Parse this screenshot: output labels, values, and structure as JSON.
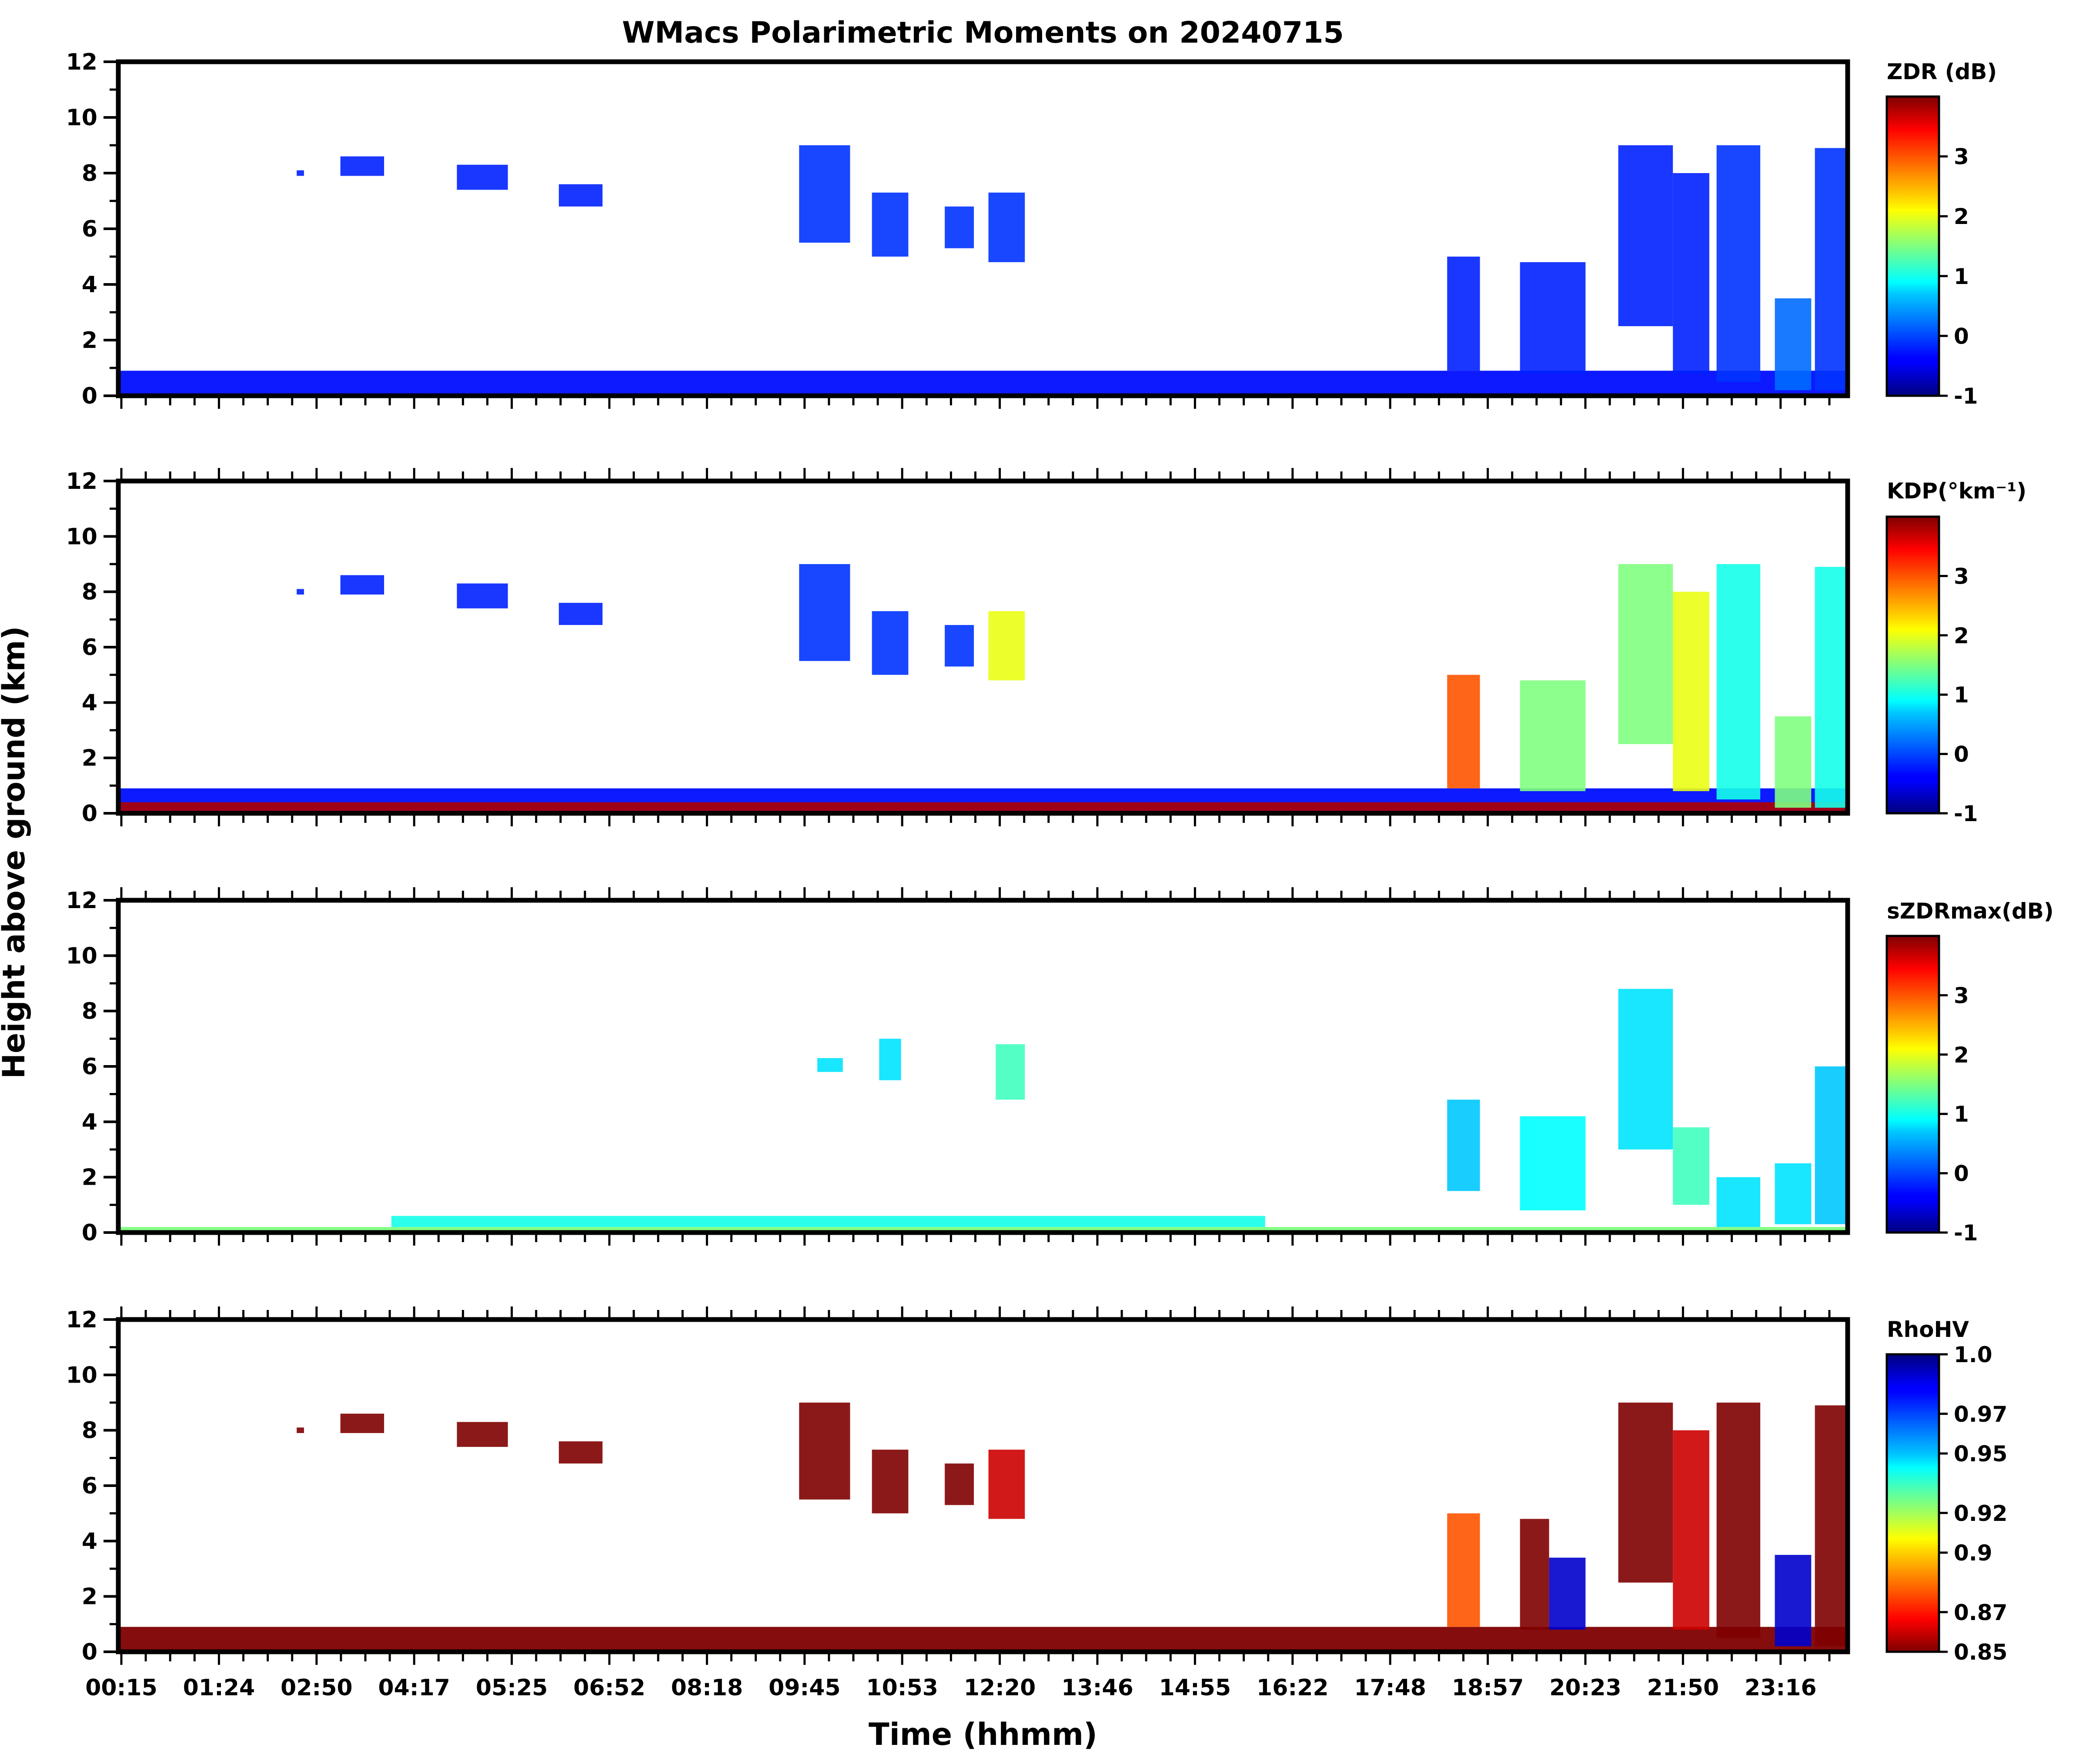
{
  "chart_data": {
    "type": "heatmap",
    "title": "WMacs Polarimetric Moments on 20240715",
    "xlabel": "Time (hhmm)",
    "ylabel": "Height above ground (km)",
    "x_tick_labels": [
      "00:15",
      "01:24",
      "02:50",
      "04:17",
      "05:25",
      "06:52",
      "08:18",
      "09:45",
      "10:53",
      "12:20",
      "13:46",
      "14:55",
      "16:22",
      "17:48",
      "18:57",
      "20:23",
      "21:50",
      "23:16"
    ],
    "xlim": [
      0.25,
      24.0
    ],
    "ylim": [
      0,
      12
    ],
    "y_ticks": [
      "0",
      "2",
      "4",
      "6",
      "8",
      "10",
      "12"
    ],
    "panels": [
      {
        "field": "ZDR",
        "colorbar_label": "ZDR (dB)",
        "color_range": [
          -1,
          4
        ],
        "colorbar_ticks": [
          "-1",
          "0",
          "1",
          "2",
          "3"
        ],
        "colorbar_tick_values": [
          -1,
          0,
          1,
          2,
          3
        ],
        "colormap": "jet",
        "dominant_echo_color": "#1f5fe8",
        "echo_regions": [
          {
            "t_start": 0.25,
            "t_end": 24.0,
            "h_bottom": 0.0,
            "h_top": 0.9,
            "value": -0.3
          },
          {
            "t_start": 2.7,
            "t_end": 2.8,
            "h_bottom": 7.9,
            "h_top": 8.1,
            "value": -0.2
          },
          {
            "t_start": 3.3,
            "t_end": 3.9,
            "h_bottom": 7.9,
            "h_top": 8.6,
            "value": -0.2
          },
          {
            "t_start": 4.9,
            "t_end": 5.6,
            "h_bottom": 7.4,
            "h_top": 8.3,
            "value": -0.2
          },
          {
            "t_start": 6.3,
            "t_end": 6.9,
            "h_bottom": 6.8,
            "h_top": 7.6,
            "value": -0.2
          },
          {
            "t_start": 9.6,
            "t_end": 10.3,
            "h_bottom": 5.5,
            "h_top": 9.0,
            "value": -0.1
          },
          {
            "t_start": 10.6,
            "t_end": 11.1,
            "h_bottom": 5.0,
            "h_top": 7.3,
            "value": -0.1
          },
          {
            "t_start": 11.6,
            "t_end": 12.0,
            "h_bottom": 5.3,
            "h_top": 6.8,
            "value": -0.1
          },
          {
            "t_start": 12.2,
            "t_end": 12.7,
            "h_bottom": 4.8,
            "h_top": 7.3,
            "value": -0.1
          },
          {
            "t_start": 18.5,
            "t_end": 18.95,
            "h_bottom": 0.9,
            "h_top": 5.0,
            "value": -0.2
          },
          {
            "t_start": 19.5,
            "t_end": 20.4,
            "h_bottom": 0.8,
            "h_top": 4.8,
            "value": -0.2
          },
          {
            "t_start": 20.85,
            "t_end": 21.6,
            "h_bottom": 2.5,
            "h_top": 9.0,
            "value": -0.2
          },
          {
            "t_start": 21.6,
            "t_end": 22.1,
            "h_bottom": 0.8,
            "h_top": 8.0,
            "value": -0.2
          },
          {
            "t_start": 22.2,
            "t_end": 22.8,
            "h_bottom": 0.5,
            "h_top": 9.0,
            "value": -0.1
          },
          {
            "t_start": 23.0,
            "t_end": 23.5,
            "h_bottom": 0.2,
            "h_top": 3.5,
            "value": 0.2
          },
          {
            "t_start": 23.55,
            "t_end": 24.0,
            "h_bottom": 0.2,
            "h_top": 8.9,
            "value": -0.1
          }
        ]
      },
      {
        "field": "KDP",
        "colorbar_label": "KDP(°km⁻¹)",
        "color_range": [
          -1,
          4
        ],
        "colorbar_ticks": [
          "-1",
          "0",
          "1",
          "2",
          "3"
        ],
        "colorbar_tick_values": [
          -1,
          0,
          1,
          2,
          3
        ],
        "colormap": "jet",
        "dominant_echo_color": "#1f5fe8",
        "echo_regions": [
          {
            "t_start": 0.25,
            "t_end": 24.0,
            "h_bottom": 0.0,
            "h_top": 0.9,
            "value": -0.3
          },
          {
            "t_start": 0.25,
            "t_end": 24.0,
            "h_bottom": 0.0,
            "h_top": 0.4,
            "value": 3.8
          },
          {
            "t_start": 2.7,
            "t_end": 2.8,
            "h_bottom": 7.9,
            "h_top": 8.1,
            "value": -0.2
          },
          {
            "t_start": 3.3,
            "t_end": 3.9,
            "h_bottom": 7.9,
            "h_top": 8.6,
            "value": -0.2
          },
          {
            "t_start": 4.9,
            "t_end": 5.6,
            "h_bottom": 7.4,
            "h_top": 8.3,
            "value": -0.2
          },
          {
            "t_start": 6.3,
            "t_end": 6.9,
            "h_bottom": 6.8,
            "h_top": 7.6,
            "value": -0.2
          },
          {
            "t_start": 9.6,
            "t_end": 10.3,
            "h_bottom": 5.5,
            "h_top": 9.0,
            "value": -0.1
          },
          {
            "t_start": 10.6,
            "t_end": 11.1,
            "h_bottom": 5.0,
            "h_top": 7.3,
            "value": -0.1
          },
          {
            "t_start": 11.6,
            "t_end": 12.0,
            "h_bottom": 5.3,
            "h_top": 6.8,
            "value": -0.1
          },
          {
            "t_start": 12.2,
            "t_end": 12.7,
            "h_bottom": 4.8,
            "h_top": 7.3,
            "value": 2.0
          },
          {
            "t_start": 18.5,
            "t_end": 18.95,
            "h_bottom": 0.9,
            "h_top": 5.0,
            "value": 3.0
          },
          {
            "t_start": 19.5,
            "t_end": 20.4,
            "h_bottom": 0.8,
            "h_top": 4.8,
            "value": 1.5
          },
          {
            "t_start": 20.85,
            "t_end": 21.6,
            "h_bottom": 2.5,
            "h_top": 9.0,
            "value": 1.5
          },
          {
            "t_start": 21.6,
            "t_end": 22.1,
            "h_bottom": 0.8,
            "h_top": 8.0,
            "value": 2.0
          },
          {
            "t_start": 22.2,
            "t_end": 22.8,
            "h_bottom": 0.5,
            "h_top": 9.0,
            "value": 1.0
          },
          {
            "t_start": 23.0,
            "t_end": 23.5,
            "h_bottom": 0.2,
            "h_top": 3.5,
            "value": 1.5
          },
          {
            "t_start": 23.55,
            "t_end": 24.0,
            "h_bottom": 0.2,
            "h_top": 8.9,
            "value": 1.0
          }
        ]
      },
      {
        "field": "sZDRmax",
        "colorbar_label": "sZDRmax(dB)",
        "color_range": [
          -1,
          4
        ],
        "colorbar_ticks": [
          "-1",
          "0",
          "1",
          "2",
          "3"
        ],
        "colorbar_tick_values": [
          -1,
          0,
          1,
          2,
          3
        ],
        "colormap": "jet",
        "dominant_echo_color": "#2bc4f0",
        "echo_regions": [
          {
            "t_start": 0.25,
            "t_end": 24.0,
            "h_bottom": 0.0,
            "h_top": 0.2,
            "value": 1.5
          },
          {
            "t_start": 4.0,
            "t_end": 16.0,
            "h_bottom": 0.2,
            "h_top": 0.6,
            "value": 1.0
          },
          {
            "t_start": 9.85,
            "t_end": 10.2,
            "h_bottom": 5.8,
            "h_top": 6.3,
            "value": 0.8
          },
          {
            "t_start": 10.7,
            "t_end": 11.0,
            "h_bottom": 5.5,
            "h_top": 7.0,
            "value": 0.8
          },
          {
            "t_start": 12.3,
            "t_end": 12.7,
            "h_bottom": 4.8,
            "h_top": 6.8,
            "value": 1.2
          },
          {
            "t_start": 18.5,
            "t_end": 18.95,
            "h_bottom": 1.5,
            "h_top": 4.8,
            "value": 0.7
          },
          {
            "t_start": 19.5,
            "t_end": 20.4,
            "h_bottom": 0.8,
            "h_top": 4.2,
            "value": 0.9
          },
          {
            "t_start": 20.85,
            "t_end": 21.6,
            "h_bottom": 3.0,
            "h_top": 8.8,
            "value": 0.8
          },
          {
            "t_start": 21.6,
            "t_end": 22.1,
            "h_bottom": 1.0,
            "h_top": 3.8,
            "value": 1.2
          },
          {
            "t_start": 22.2,
            "t_end": 22.8,
            "h_bottom": 0.2,
            "h_top": 2.0,
            "value": 0.8
          },
          {
            "t_start": 23.0,
            "t_end": 23.5,
            "h_bottom": 0.3,
            "h_top": 2.5,
            "value": 0.8
          },
          {
            "t_start": 23.55,
            "t_end": 24.0,
            "h_bottom": 0.3,
            "h_top": 6.0,
            "value": 0.7
          }
        ]
      },
      {
        "field": "RhoHV",
        "colorbar_label": "RhoHV",
        "color_range": [
          0.85,
          1.0
        ],
        "colorbar_ticks": [
          "1.0",
          "0.97",
          "0.95",
          "0.92",
          "0.9",
          "0.87",
          "0.85"
        ],
        "colorbar_tick_values": [
          1.0,
          0.97,
          0.95,
          0.92,
          0.9,
          0.87,
          0.85
        ],
        "colormap": "jet_r",
        "dominant_echo_color": "#8b0000",
        "echo_regions": [
          {
            "t_start": 0.25,
            "t_end": 24.0,
            "h_bottom": 0.0,
            "h_top": 0.9,
            "value": 0.85
          },
          {
            "t_start": 2.7,
            "t_end": 2.8,
            "h_bottom": 7.9,
            "h_top": 8.1,
            "value": 0.85
          },
          {
            "t_start": 3.3,
            "t_end": 3.9,
            "h_bottom": 7.9,
            "h_top": 8.6,
            "value": 0.85
          },
          {
            "t_start": 4.9,
            "t_end": 5.6,
            "h_bottom": 7.4,
            "h_top": 8.3,
            "value": 0.85
          },
          {
            "t_start": 6.3,
            "t_end": 6.9,
            "h_bottom": 6.8,
            "h_top": 7.6,
            "value": 0.85
          },
          {
            "t_start": 9.6,
            "t_end": 10.3,
            "h_bottom": 5.5,
            "h_top": 9.0,
            "value": 0.85
          },
          {
            "t_start": 10.6,
            "t_end": 11.1,
            "h_bottom": 5.0,
            "h_top": 7.3,
            "value": 0.85
          },
          {
            "t_start": 11.6,
            "t_end": 12.0,
            "h_bottom": 5.3,
            "h_top": 6.8,
            "value": 0.85
          },
          {
            "t_start": 12.2,
            "t_end": 12.7,
            "h_bottom": 4.8,
            "h_top": 7.3,
            "value": 0.86
          },
          {
            "t_start": 18.5,
            "t_end": 18.95,
            "h_bottom": 0.9,
            "h_top": 5.0,
            "value": 0.88
          },
          {
            "t_start": 19.5,
            "t_end": 19.9,
            "h_bottom": 0.8,
            "h_top": 4.8,
            "value": 0.85
          },
          {
            "t_start": 19.9,
            "t_end": 20.4,
            "h_bottom": 0.8,
            "h_top": 3.4,
            "value": 0.99
          },
          {
            "t_start": 20.85,
            "t_end": 21.6,
            "h_bottom": 2.5,
            "h_top": 9.0,
            "value": 0.85
          },
          {
            "t_start": 21.6,
            "t_end": 22.1,
            "h_bottom": 0.8,
            "h_top": 8.0,
            "value": 0.86
          },
          {
            "t_start": 22.2,
            "t_end": 22.8,
            "h_bottom": 0.5,
            "h_top": 9.0,
            "value": 0.85
          },
          {
            "t_start": 23.0,
            "t_end": 23.5,
            "h_bottom": 0.2,
            "h_top": 3.5,
            "value": 0.99
          },
          {
            "t_start": 23.55,
            "t_end": 24.0,
            "h_bottom": 0.2,
            "h_top": 8.9,
            "value": 0.85
          }
        ]
      }
    ]
  }
}
